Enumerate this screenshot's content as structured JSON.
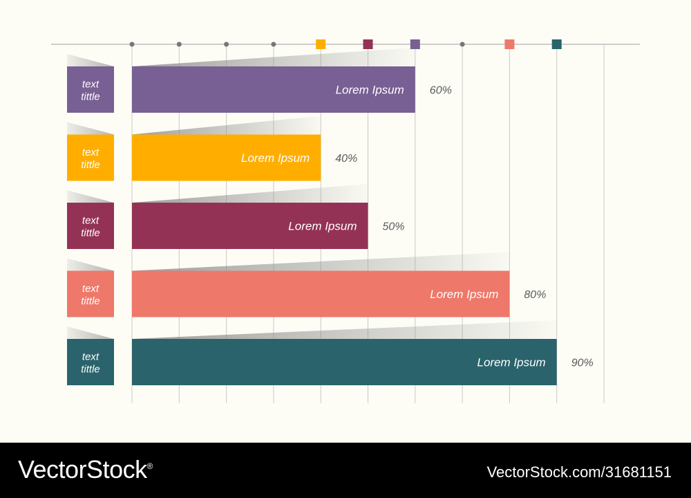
{
  "chart_data": {
    "type": "bar",
    "orientation": "horizontal",
    "xlim": [
      0,
      100
    ],
    "grid": true,
    "categories": [
      {
        "label_lines": [
          "text",
          "tittle"
        ],
        "bar_label": "Lorem Ipsum",
        "value": 60,
        "value_label": "60%",
        "color": "#785f94"
      },
      {
        "label_lines": [
          "text",
          "tittle"
        ],
        "bar_label": "Lorem Ipsum",
        "value": 40,
        "value_label": "40%",
        "color": "#ffae00"
      },
      {
        "label_lines": [
          "text",
          "tittle"
        ],
        "bar_label": "Lorem Ipsum",
        "value": 50,
        "value_label": "50%",
        "color": "#943256"
      },
      {
        "label_lines": [
          "text",
          "tittle"
        ],
        "bar_label": "Lorem Ipsum",
        "value": 80,
        "value_label": "80%",
        "color": "#ee7869"
      },
      {
        "label_lines": [
          "text",
          "tittle"
        ],
        "bar_label": "Lorem Ipsum",
        "value": 90,
        "value_label": "90%",
        "color": "#2a636b"
      }
    ],
    "axis_markers": [
      {
        "value": 0,
        "shape": "dot",
        "color": "#777777"
      },
      {
        "value": 10,
        "shape": "dot",
        "color": "#777777"
      },
      {
        "value": 20,
        "shape": "dot",
        "color": "#777777"
      },
      {
        "value": 30,
        "shape": "dot",
        "color": "#777777"
      },
      {
        "value": 40,
        "shape": "square",
        "color": "#ffae00"
      },
      {
        "value": 50,
        "shape": "square",
        "color": "#943256"
      },
      {
        "value": 60,
        "shape": "square",
        "color": "#785f94"
      },
      {
        "value": 70,
        "shape": "dot",
        "color": "#777777"
      },
      {
        "value": 80,
        "shape": "square",
        "color": "#ee7869"
      },
      {
        "value": 90,
        "shape": "square",
        "color": "#2a636b"
      }
    ]
  },
  "footer": {
    "brand": "VectorStock",
    "brand_mark": "®",
    "reference": "VectorStock.com/31681151"
  }
}
